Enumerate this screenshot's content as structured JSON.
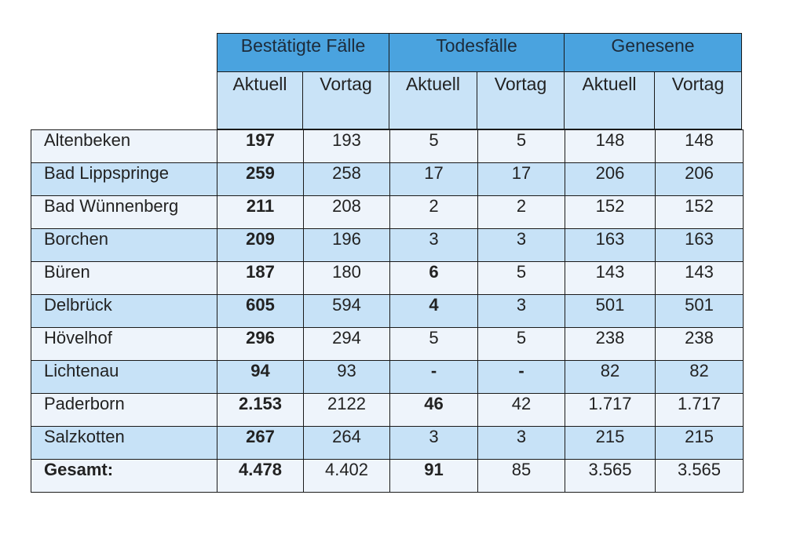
{
  "table": {
    "groups": [
      "Bestätigte Fälle",
      "Todesfälle",
      "Genesene"
    ],
    "subheaders": [
      "Aktuell",
      "Vortag",
      "Aktuell",
      "Vortag",
      "Aktuell",
      "Vortag"
    ],
    "rows": [
      {
        "name": "Altenbeken",
        "cells": [
          "197",
          "193",
          "5",
          "5",
          "148",
          "148"
        ],
        "bold": [
          0
        ]
      },
      {
        "name": "Bad Lippspringe",
        "cells": [
          "259",
          "258",
          "17",
          "17",
          "206",
          "206"
        ],
        "bold": [
          0
        ]
      },
      {
        "name": "Bad Wünnenberg",
        "cells": [
          "211",
          "208",
          "2",
          "2",
          "152",
          "152"
        ],
        "bold": [
          0
        ]
      },
      {
        "name": "Borchen",
        "cells": [
          "209",
          "196",
          "3",
          "3",
          "163",
          "163"
        ],
        "bold": [
          0
        ]
      },
      {
        "name": "Büren",
        "cells": [
          "187",
          "180",
          "6",
          "5",
          "143",
          "143"
        ],
        "bold": [
          0,
          2
        ]
      },
      {
        "name": "Delbrück",
        "cells": [
          "605",
          "594",
          "4",
          "3",
          "501",
          "501"
        ],
        "bold": [
          0,
          2
        ]
      },
      {
        "name": "Hövelhof",
        "cells": [
          "296",
          "294",
          "5",
          "5",
          "238",
          "238"
        ],
        "bold": [
          0
        ]
      },
      {
        "name": "Lichtenau",
        "cells": [
          "94",
          "93",
          "-",
          "-",
          "82",
          "82"
        ],
        "bold": [
          0,
          2,
          3
        ]
      },
      {
        "name": "Paderborn",
        "cells": [
          "2.153",
          "2122",
          "46",
          "42",
          "1.717",
          "1.717"
        ],
        "bold": [
          0,
          2
        ]
      },
      {
        "name": "Salzkotten",
        "cells": [
          "267",
          "264",
          "3",
          "3",
          "215",
          "215"
        ],
        "bold": [
          0
        ]
      },
      {
        "name": "Gesamt:",
        "cells": [
          "4.478",
          "4.402",
          "91",
          "85",
          "3.565",
          "3.565"
        ],
        "bold": [
          0,
          2
        ],
        "name_bold": true
      }
    ]
  },
  "colors": {
    "group_header_bg": "#4aa3df",
    "subheader_bg": "#c9e3f7",
    "row_light": "#eef4fb",
    "row_blue": "#c7e2f7"
  }
}
